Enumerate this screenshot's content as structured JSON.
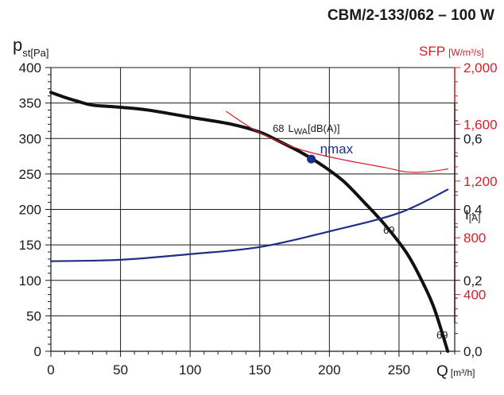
{
  "chart_data": {
    "type": "line",
    "title": "CBM/2-133/062 – 100 W",
    "xlabel": {
      "main": "Q",
      "unit": "[m³/h]"
    },
    "ylabel": {
      "main": "p",
      "sub": "st",
      "unit": "[Pa]"
    },
    "y2label": {
      "main": "SFP",
      "unit": "[W/m³/s]"
    },
    "y3label": {
      "main": "I",
      "unit": "[A]"
    },
    "xlim": [
      0,
      290
    ],
    "ylim": [
      0,
      400
    ],
    "y2lim": [
      0,
      2000
    ],
    "y3lim": [
      0,
      0.8
    ],
    "x_ticks": [
      "0",
      "50",
      "100",
      "150",
      "200",
      "250"
    ],
    "y_ticks": [
      "0",
      "50",
      "100",
      "150",
      "200",
      "250",
      "300",
      "350",
      "400"
    ],
    "y2_ticks": [
      "400",
      "800",
      "1,200",
      "1,600",
      "2,000"
    ],
    "y3_ticks": [
      "0,0",
      "0,2",
      "0,4",
      "0,6"
    ],
    "grid": true,
    "series": [
      {
        "role": "pressure",
        "axis": "y",
        "color": "#111111",
        "x": [
          0,
          10,
          20,
          30,
          50,
          70,
          100,
          130,
          150,
          165,
          180,
          195,
          210,
          225,
          240,
          255,
          265,
          275,
          285
        ],
        "y": [
          365,
          358,
          352,
          347,
          344,
          340,
          330,
          320,
          309,
          295,
          280,
          262,
          240,
          210,
          178,
          140,
          105,
          62,
          0
        ]
      },
      {
        "role": "current",
        "axis": "y3",
        "color": "#1f2f86",
        "x": [
          0,
          50,
          100,
          150,
          200,
          250,
          285
        ],
        "y": [
          0.254,
          0.258,
          0.274,
          0.294,
          0.338,
          0.39,
          0.456
        ]
      },
      {
        "role": "sfp",
        "axis": "y2",
        "color": "#d8202a",
        "x": [
          126,
          150,
          180,
          210,
          240,
          255,
          270,
          285
        ],
        "y": [
          1690,
          1540,
          1420,
          1350,
          1295,
          1265,
          1265,
          1285
        ]
      }
    ],
    "annotations": [
      {
        "text": "68",
        "sub": "L",
        "sub2": "WA",
        "unit": "[dB(A)]"
      },
      {
        "text": "69"
      },
      {
        "text": "69"
      },
      {
        "text": "ηmax",
        "x": 187,
        "y": 271
      }
    ]
  }
}
